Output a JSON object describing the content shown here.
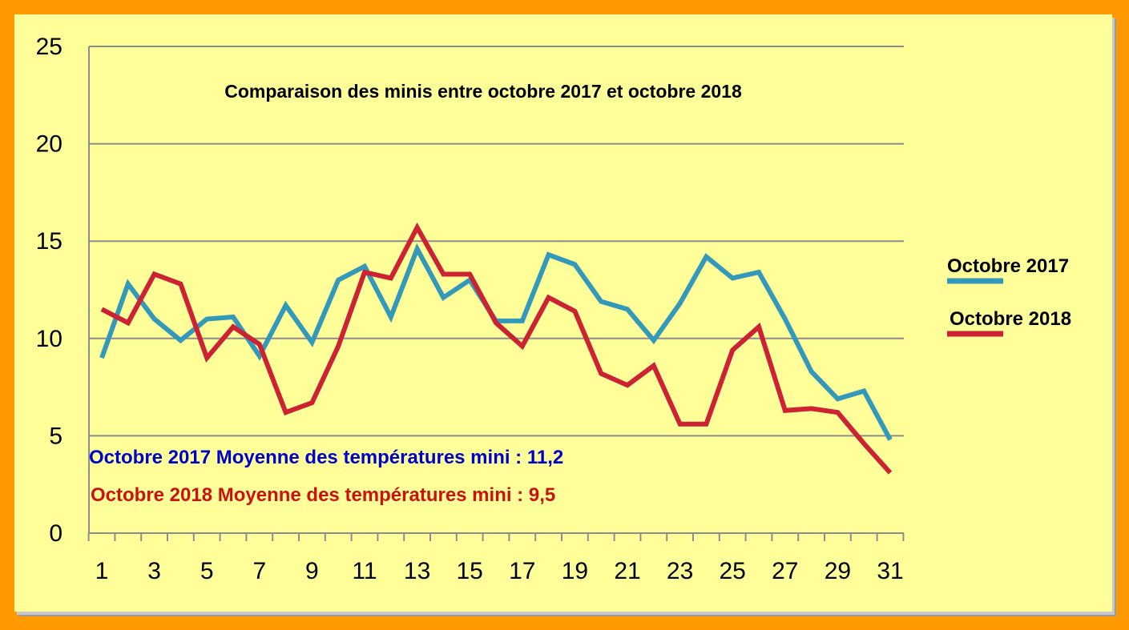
{
  "chart_data": {
    "type": "line",
    "title": "Comparaison des minis entre octobre 2017 et octobre 2018",
    "xlabel": "",
    "ylabel": "",
    "ylim": [
      0,
      25
    ],
    "yticks": [
      "0",
      "5",
      "10",
      "15",
      "20",
      "25"
    ],
    "x": [
      1,
      2,
      3,
      4,
      5,
      6,
      7,
      8,
      9,
      10,
      11,
      12,
      13,
      14,
      15,
      16,
      17,
      18,
      19,
      20,
      21,
      22,
      23,
      24,
      25,
      26,
      27,
      28,
      29,
      30,
      31
    ],
    "xtick_labels": [
      "1",
      "3",
      "5",
      "7",
      "9",
      "11",
      "13",
      "15",
      "17",
      "19",
      "21",
      "23",
      "25",
      "27",
      "29",
      "31"
    ],
    "grid": "horizontal",
    "legend_position": "right",
    "series": [
      {
        "name": "Octobre 2017",
        "color": "#3399bb",
        "values": [
          9.0,
          12.8,
          11.0,
          9.9,
          11.0,
          11.1,
          9.1,
          11.7,
          9.8,
          13.0,
          13.7,
          11.1,
          14.6,
          12.1,
          13.0,
          10.9,
          10.9,
          14.3,
          13.8,
          11.9,
          11.5,
          9.9,
          11.8,
          14.2,
          13.1,
          13.4,
          11.0,
          8.3,
          6.9,
          7.3,
          4.8
        ]
      },
      {
        "name": "Octobre 2018",
        "color": "#cc2233",
        "values": [
          11.5,
          10.8,
          13.3,
          12.8,
          9.0,
          10.6,
          9.7,
          6.2,
          6.7,
          9.6,
          13.4,
          13.1,
          15.7,
          13.3,
          13.3,
          10.8,
          9.6,
          12.1,
          11.4,
          8.2,
          7.6,
          8.6,
          5.6,
          5.6,
          9.4,
          10.6,
          6.3,
          6.4,
          6.2,
          4.6,
          3.1
        ]
      }
    ],
    "annotations": [
      {
        "text": "Octobre 2017 Moyenne des températures mini : 11,2",
        "color": "#0000cc"
      },
      {
        "text": "Octobre 2018 Moyenne des températures mini :  9,5",
        "color": "#cc1111"
      }
    ]
  }
}
